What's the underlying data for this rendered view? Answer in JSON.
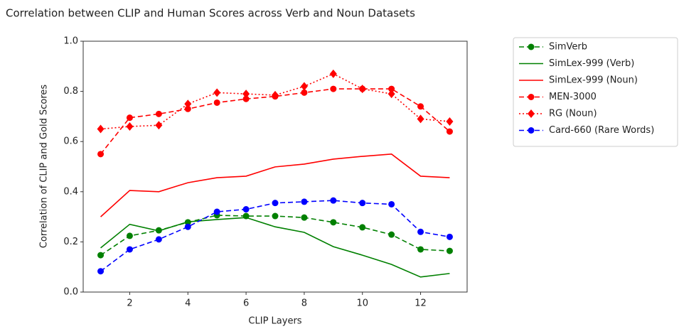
{
  "chart_data": {
    "type": "line",
    "title": "Correlation between CLIP and Human Scores across Verb and Noun Datasets",
    "x_label": "CLIP Layers",
    "y_label": "Correlation of CLIP and Gold Scores",
    "x": [
      1,
      2,
      3,
      4,
      5,
      6,
      7,
      8,
      9,
      10,
      11,
      12,
      13
    ],
    "xlim": [
      0.4,
      13.6
    ],
    "xticks": [
      2,
      4,
      6,
      8,
      10,
      12
    ],
    "ylim": [
      0,
      1
    ],
    "yticks": [
      {
        "value": 0,
        "label": "0.0"
      },
      {
        "value": 0.2,
        "label": "0.2"
      },
      {
        "value": 0.4,
        "label": "0.4"
      },
      {
        "value": 0.6,
        "label": "0.6"
      },
      {
        "value": 0.8,
        "label": "0.8"
      },
      {
        "value": 1,
        "label": "1.0"
      }
    ],
    "grid": false,
    "legend": "outside right",
    "series": [
      {
        "name": "SimVerb",
        "color": "#008000",
        "linestyle": "dashed",
        "marker": "circle",
        "values": [
          0.147,
          0.224,
          0.246,
          0.278,
          0.306,
          0.303,
          0.303,
          0.297,
          0.278,
          0.258,
          0.229,
          0.17,
          0.164
        ]
      },
      {
        "name": "SimLex-999 (Verb)",
        "color": "#008000",
        "linestyle": "solid",
        "marker": "none",
        "values": [
          0.176,
          0.27,
          0.244,
          0.28,
          0.289,
          0.297,
          0.26,
          0.238,
          0.181,
          0.147,
          0.11,
          0.06,
          0.074
        ]
      },
      {
        "name": "SimLex-999 (Noun)",
        "color": "#ff0000",
        "linestyle": "solid",
        "marker": "none",
        "values": [
          0.3,
          0.405,
          0.4,
          0.436,
          0.456,
          0.462,
          0.499,
          0.51,
          0.53,
          0.541,
          0.55,
          0.462,
          0.456
        ]
      },
      {
        "name": "MEN-3000",
        "color": "#ff0000",
        "linestyle": "dashed",
        "marker": "circle",
        "values": [
          0.55,
          0.695,
          0.71,
          0.73,
          0.755,
          0.77,
          0.78,
          0.795,
          0.81,
          0.81,
          0.81,
          0.74,
          0.64
        ]
      },
      {
        "name": "RG (Noun)",
        "color": "#ff0000",
        "linestyle": "dotted",
        "marker": "diamond",
        "values": [
          0.65,
          0.66,
          0.665,
          0.75,
          0.795,
          0.79,
          0.785,
          0.82,
          0.87,
          0.81,
          0.79,
          0.69,
          0.68
        ]
      },
      {
        "name": "Card-660 (Rare Words)",
        "color": "#0000ff",
        "linestyle": "dashed",
        "marker": "circle",
        "values": [
          0.083,
          0.17,
          0.21,
          0.26,
          0.32,
          0.33,
          0.355,
          0.36,
          0.365,
          0.355,
          0.35,
          0.24,
          0.22
        ]
      }
    ]
  }
}
